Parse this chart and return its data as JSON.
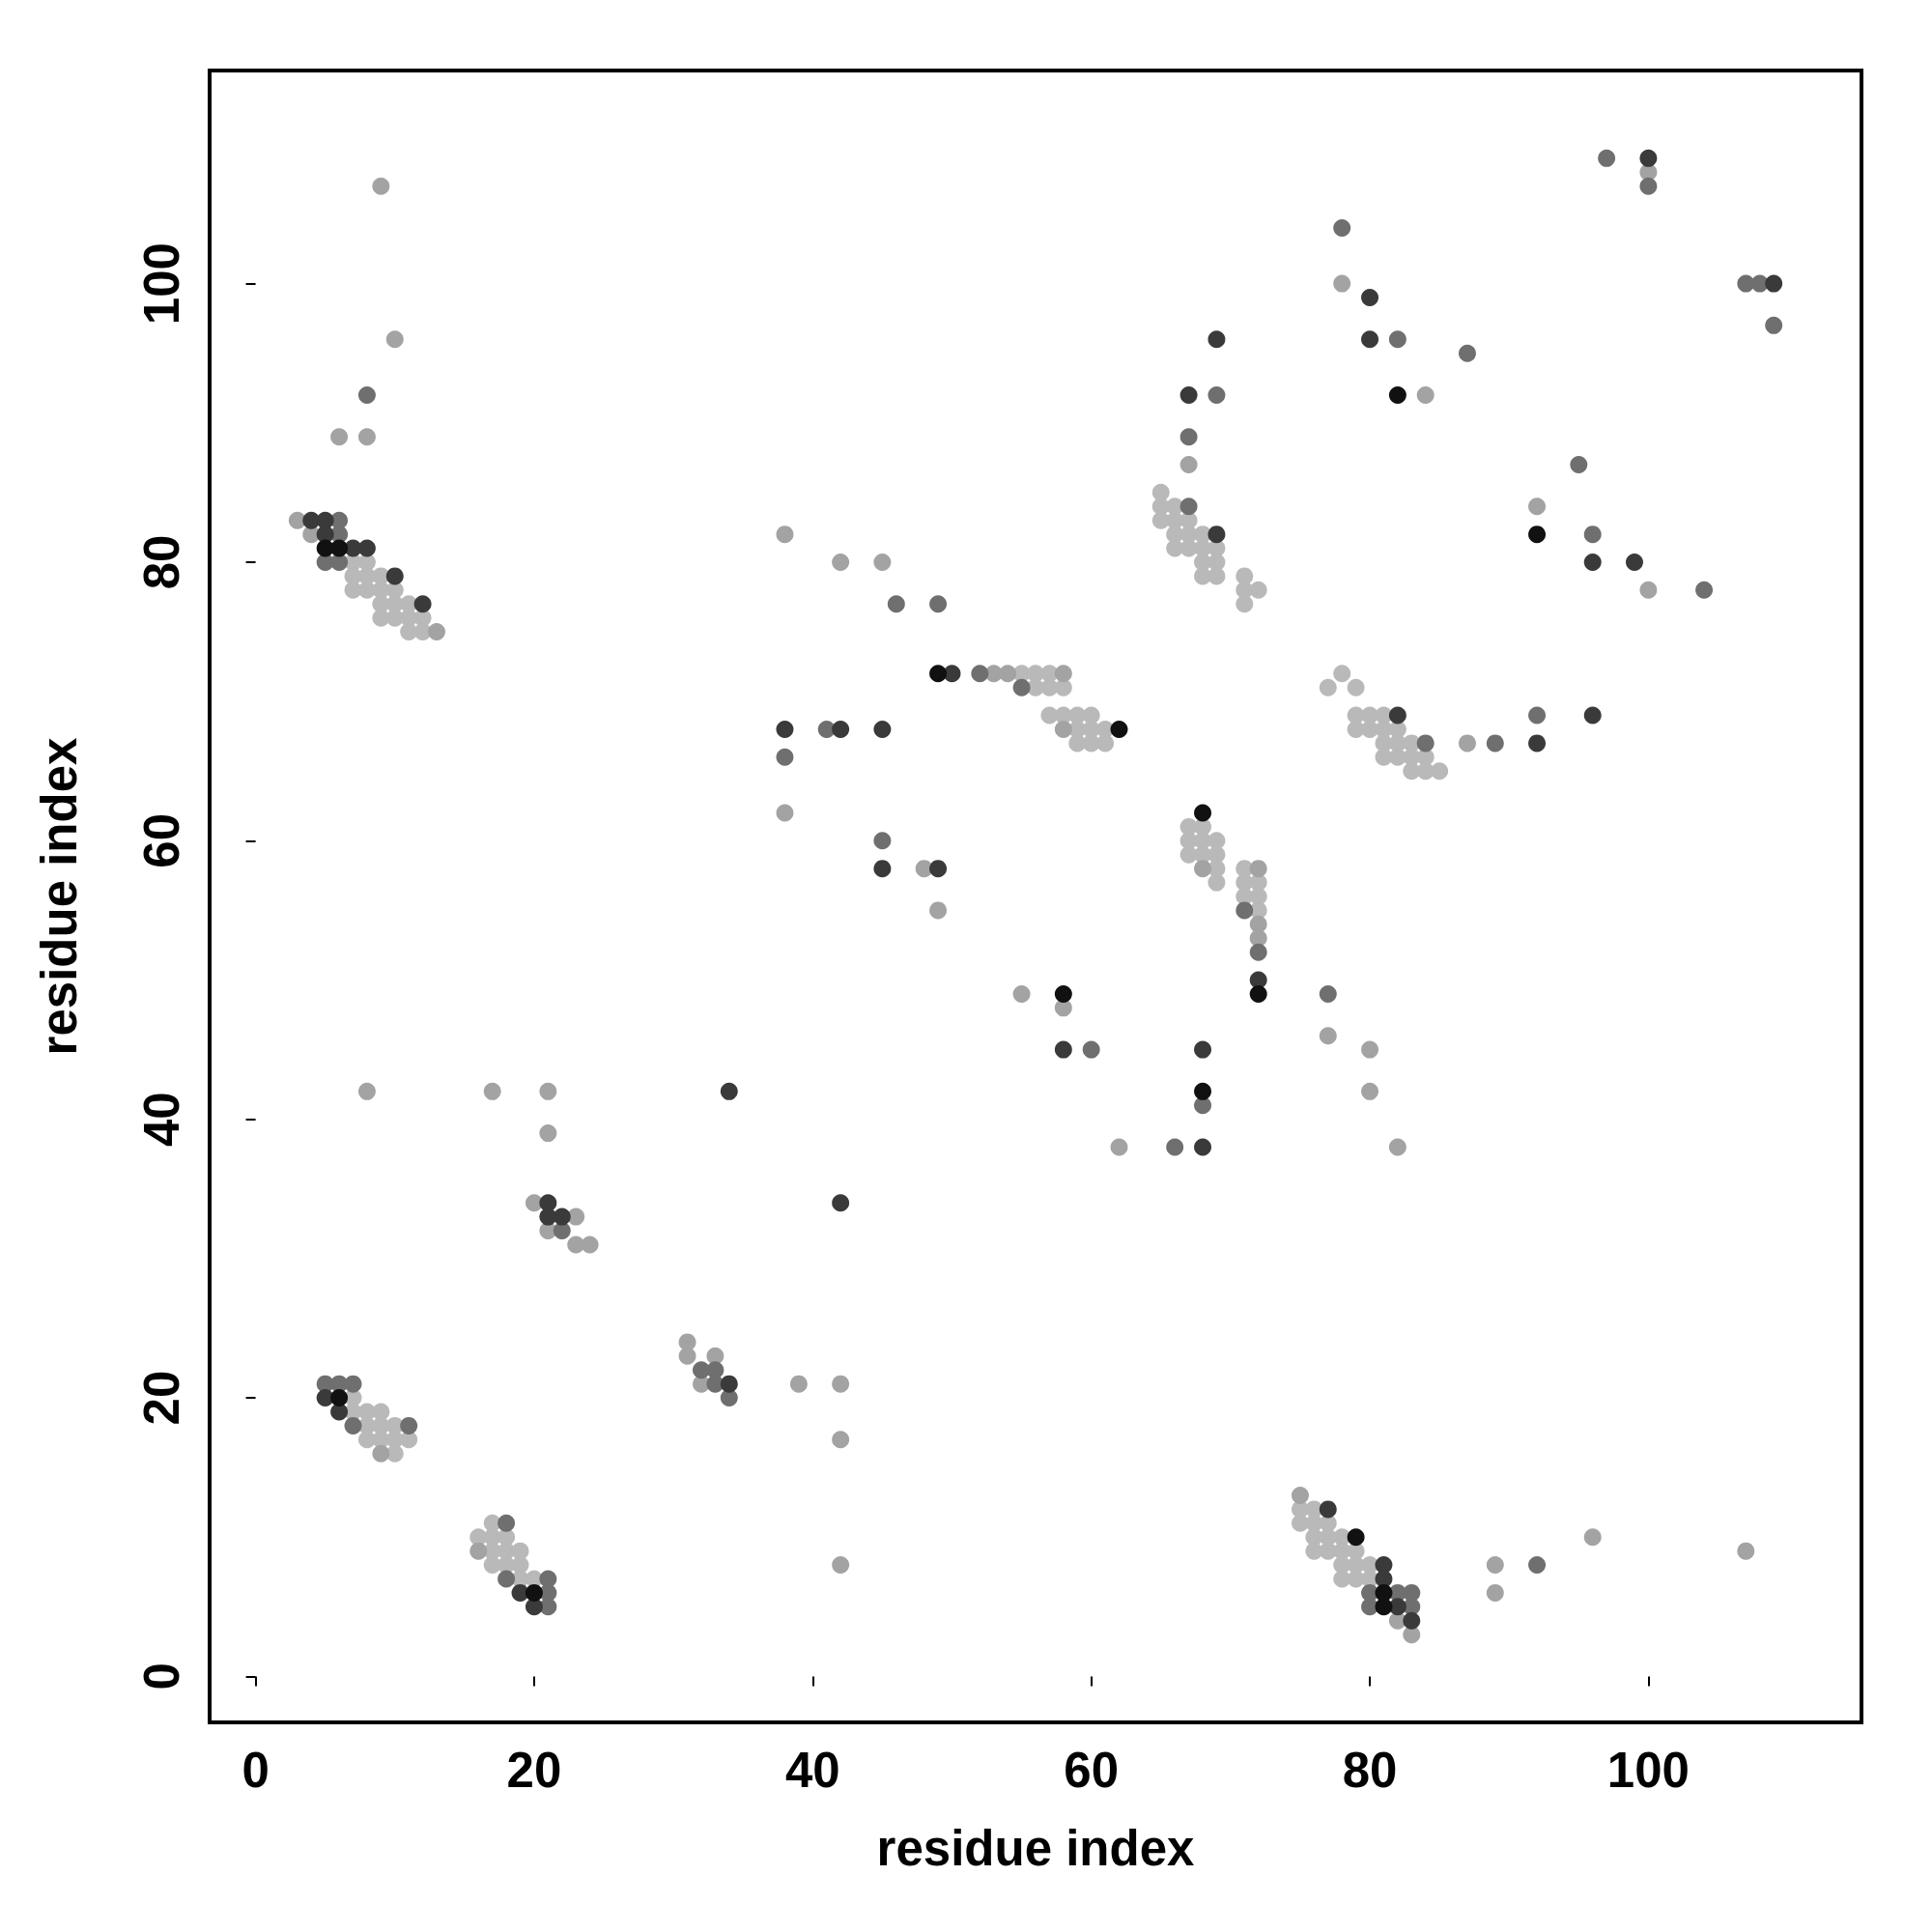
{
  "chart_data": {
    "type": "scatter",
    "xlabel": "residue index",
    "ylabel": "residue index",
    "xlim": [
      -3.3,
      115.3
    ],
    "ylim": [
      -3.3,
      115.3
    ],
    "xticks": [
      0,
      20,
      40,
      60,
      80,
      100
    ],
    "yticks": [
      0,
      20,
      40,
      60,
      80,
      100
    ],
    "grid": false,
    "marker": "circle",
    "series": [
      {
        "color": "#b9b9b9",
        "x": [
          7,
          8,
          7,
          8,
          9,
          7,
          8,
          9,
          10,
          9,
          10,
          11,
          9,
          10,
          11,
          12,
          11,
          12,
          7,
          7,
          8,
          9,
          8,
          9,
          10,
          8,
          9,
          10,
          11,
          10,
          17,
          16,
          17,
          18,
          17,
          18,
          19,
          17,
          18,
          19,
          19,
          20,
          55,
          56,
          57,
          56,
          57,
          58,
          57,
          58,
          59,
          60,
          59,
          60,
          61,
          59,
          60,
          61,
          65,
          65,
          66,
          65,
          66,
          67,
          66,
          67,
          68,
          66,
          67,
          68,
          69,
          68,
          69,
          68,
          69,
          71,
          71,
          72,
          71,
          78,
          77,
          79,
          79,
          80,
          81,
          79,
          80,
          81,
          82,
          81,
          82,
          83,
          81,
          82,
          83,
          84,
          83,
          84,
          85,
          67,
          68,
          67,
          68,
          69,
          67,
          68,
          69,
          69,
          69,
          71,
          71,
          72,
          71,
          72,
          72,
          75,
          76,
          75,
          76,
          77,
          76,
          77,
          78,
          76,
          77,
          78,
          79,
          78,
          79,
          80,
          78,
          79,
          80
        ],
        "values": [
          80,
          80,
          79,
          79,
          79,
          78,
          78,
          78,
          78,
          77,
          77,
          77,
          76,
          76,
          76,
          76,
          75,
          75,
          20,
          19,
          19,
          19,
          18,
          18,
          18,
          17,
          17,
          17,
          17,
          16,
          11,
          10,
          10,
          10,
          9,
          9,
          9,
          8,
          8,
          8,
          7,
          7,
          72,
          72,
          72,
          71,
          71,
          71,
          69,
          69,
          69,
          69,
          68,
          68,
          68,
          67,
          67,
          67,
          85,
          84,
          84,
          83,
          83,
          83,
          82,
          82,
          82,
          81,
          81,
          81,
          81,
          80,
          80,
          79,
          79,
          79,
          78,
          78,
          77,
          72,
          71,
          71,
          69,
          69,
          69,
          68,
          68,
          68,
          68,
          67,
          67,
          67,
          66,
          66,
          66,
          66,
          65,
          65,
          65,
          61,
          61,
          60,
          60,
          60,
          59,
          59,
          59,
          58,
          57,
          58,
          57,
          57,
          56,
          56,
          55,
          12,
          12,
          11,
          11,
          11,
          10,
          10,
          10,
          9,
          9,
          9,
          9,
          8,
          8,
          8,
          7,
          7,
          7
        ]
      },
      {
        "color": "#a3a3a3",
        "x": [
          3,
          4,
          13,
          9,
          16,
          6,
          8,
          10,
          9,
          8,
          17,
          21,
          21,
          20,
          23,
          21,
          23,
          24,
          31,
          31,
          33,
          32,
          39,
          42,
          42,
          42,
          38,
          38,
          42,
          45,
          48,
          49,
          53,
          54,
          58,
          58,
          55,
          58,
          62,
          67,
          68,
          72,
          72,
          72,
          77,
          80,
          80,
          82,
          78,
          84,
          87,
          92,
          100,
          100,
          89,
          89,
          96,
          107,
          75,
          82,
          83
        ],
        "values": [
          83,
          82,
          75,
          16,
          9,
          89,
          89,
          96,
          107,
          42,
          42,
          42,
          39,
          34,
          33,
          32,
          31,
          31,
          24,
          23,
          23,
          21,
          21,
          21,
          17,
          8,
          62,
          82,
          80,
          80,
          58,
          55,
          72,
          72,
          72,
          68,
          49,
          48,
          38,
          87,
          58,
          58,
          54,
          53,
          46,
          45,
          42,
          38,
          100,
          92,
          67,
          84,
          78,
          108,
          8,
          6,
          10,
          9,
          13,
          4,
          3
        ]
      },
      {
        "color": "#6f6f6f",
        "x": [
          6,
          6,
          5,
          6,
          5,
          6,
          7,
          7,
          11,
          18,
          18,
          21,
          21,
          21,
          8,
          22,
          32,
          33,
          33,
          34,
          38,
          41,
          46,
          49,
          45,
          52,
          55,
          60,
          66,
          68,
          67,
          69,
          67,
          71,
          72,
          77,
          84,
          78,
          82,
          87,
          89,
          92,
          96,
          95,
          104,
          97,
          100,
          107,
          108,
          109,
          92,
          82,
          83,
          80,
          80,
          83
        ],
        "values": [
          83,
          82,
          80,
          80,
          21,
          21,
          21,
          18,
          18,
          11,
          7,
          7,
          6,
          5,
          92,
          32,
          22,
          22,
          21,
          20,
          66,
          68,
          77,
          77,
          60,
          72,
          71,
          45,
          38,
          41,
          89,
          92,
          84,
          55,
          52,
          49,
          67,
          104,
          96,
          95,
          67,
          69,
          82,
          87,
          78,
          109,
          107,
          100,
          100,
          97,
          8,
          6,
          6,
          6,
          5,
          5
        ]
      },
      {
        "color": "#3a3a3a",
        "x": [
          4,
          5,
          5,
          7,
          8,
          10,
          12,
          5,
          6,
          19,
          20,
          21,
          21,
          22,
          34,
          38,
          42,
          45,
          45,
          49,
          50,
          58,
          68,
          68,
          67,
          69,
          69,
          82,
          72,
          80,
          80,
          92,
          96,
          96,
          99,
          100,
          109,
          77,
          81,
          81,
          82,
          83,
          34,
          42
        ],
        "values": [
          83,
          83,
          82,
          81,
          81,
          79,
          77,
          20,
          19,
          6,
          5,
          34,
          33,
          33,
          21,
          68,
          68,
          68,
          58,
          58,
          72,
          45,
          38,
          45,
          92,
          96,
          82,
          69,
          50,
          99,
          96,
          67,
          69,
          80,
          80,
          109,
          100,
          12,
          8,
          7,
          5,
          4,
          42,
          34
        ]
      },
      {
        "color": "#111111",
        "x": [
          5,
          6,
          6,
          20,
          49,
          62,
          58,
          68,
          68,
          72,
          82,
          92,
          79,
          81,
          81
        ],
        "values": [
          81,
          81,
          20,
          6,
          72,
          68,
          49,
          42,
          62,
          49,
          92,
          82,
          10,
          6,
          5
        ]
      }
    ]
  }
}
